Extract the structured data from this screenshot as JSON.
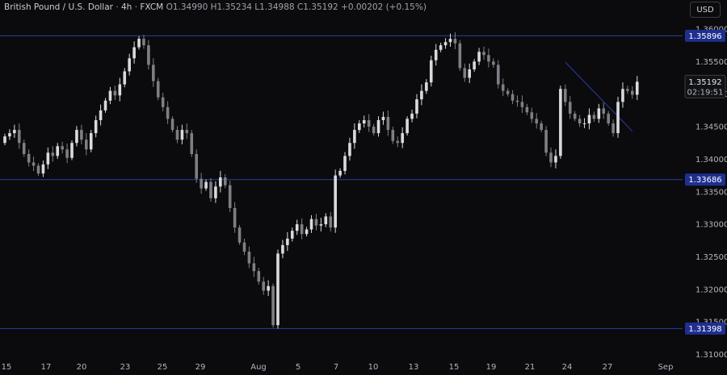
{
  "header": {
    "instrument": "British Pound / U.S. Dollar",
    "interval": "4h",
    "source": "FXCM",
    "open": "O1.34990",
    "high": "H1.35234",
    "low": "L1.34988",
    "close": "C1.35192",
    "change": "+0.00202 (+0.15%)"
  },
  "currency_button": "USD",
  "price_tag": {
    "price": "1.35192",
    "countdown": "02:19:51"
  },
  "chart_data": {
    "type": "candlestick",
    "y_ticks": [
      "1.36000",
      "1.35500",
      "1.35000",
      "1.34500",
      "1.34000",
      "1.33500",
      "1.33000",
      "1.32500",
      "1.32000",
      "1.31500",
      "1.31000"
    ],
    "x_ticks": [
      "15",
      "17",
      "20",
      "23",
      "25",
      "29",
      "Aug",
      "5",
      "7",
      "10",
      "13",
      "15",
      "19",
      "21",
      "24",
      "27",
      "Sep"
    ],
    "ylim": [
      1.3095,
      1.3618
    ],
    "grid": false,
    "horizontal_levels": [
      {
        "label": "1.35896",
        "value": 1.35896
      },
      {
        "label": "1.33686",
        "value": 1.33686
      },
      {
        "label": "1.31398",
        "value": 1.31398
      }
    ],
    "trendline": {
      "from": {
        "x": 117,
        "y": 1.3549
      },
      "to": {
        "x": 131,
        "y": 1.3443
      }
    },
    "colors": {
      "bull": "#d9dadc",
      "bear": "#7d7f85",
      "levels": "#2b3ca8",
      "trend": "#2b3ca8",
      "tag_bg": "#1f2f8f",
      "last_tag_bg": "#d1d4dc"
    },
    "closes": [
      1.3435,
      1.344,
      1.3445,
      1.3425,
      1.3408,
      1.3395,
      1.339,
      1.3378,
      1.3392,
      1.341,
      1.3405,
      1.342,
      1.3415,
      1.3402,
      1.3425,
      1.3445,
      1.343,
      1.3415,
      1.344,
      1.346,
      1.3475,
      1.349,
      1.3505,
      1.3498,
      1.3515,
      1.3535,
      1.3555,
      1.3572,
      1.3585,
      1.3575,
      1.3545,
      1.352,
      1.3495,
      1.348,
      1.3462,
      1.3445,
      1.343,
      1.3445,
      1.344,
      1.3408,
      1.337,
      1.3355,
      1.3365,
      1.334,
      1.3358,
      1.3372,
      1.336,
      1.3325,
      1.3295,
      1.3272,
      1.3258,
      1.324,
      1.3228,
      1.3212,
      1.3198,
      1.3205,
      1.3145,
      1.3255,
      1.3268,
      1.3278,
      1.329,
      1.33,
      1.3285,
      1.3292,
      1.3308,
      1.3298,
      1.33,
      1.3312,
      1.3295,
      1.3375,
      1.3382,
      1.3405,
      1.3425,
      1.3445,
      1.3455,
      1.346,
      1.345,
      1.344,
      1.346,
      1.3465,
      1.3445,
      1.3428,
      1.3425,
      1.344,
      1.3462,
      1.347,
      1.3492,
      1.3505,
      1.3518,
      1.3552,
      1.3568,
      1.3575,
      1.358,
      1.3585,
      1.3578,
      1.354,
      1.3525,
      1.3538,
      1.355,
      1.3565,
      1.356,
      1.355,
      1.3545,
      1.3515,
      1.3505,
      1.35,
      1.349,
      1.3488,
      1.348,
      1.3472,
      1.3462,
      1.3455,
      1.3445,
      1.341,
      1.3395,
      1.3405,
      1.3508,
      1.3488,
      1.347,
      1.3462,
      1.3455,
      1.3455,
      1.3468,
      1.3462,
      1.3478,
      1.347,
      1.3455,
      1.344,
      1.3488,
      1.3508,
      1.3505,
      1.3499,
      1.3519
    ]
  }
}
